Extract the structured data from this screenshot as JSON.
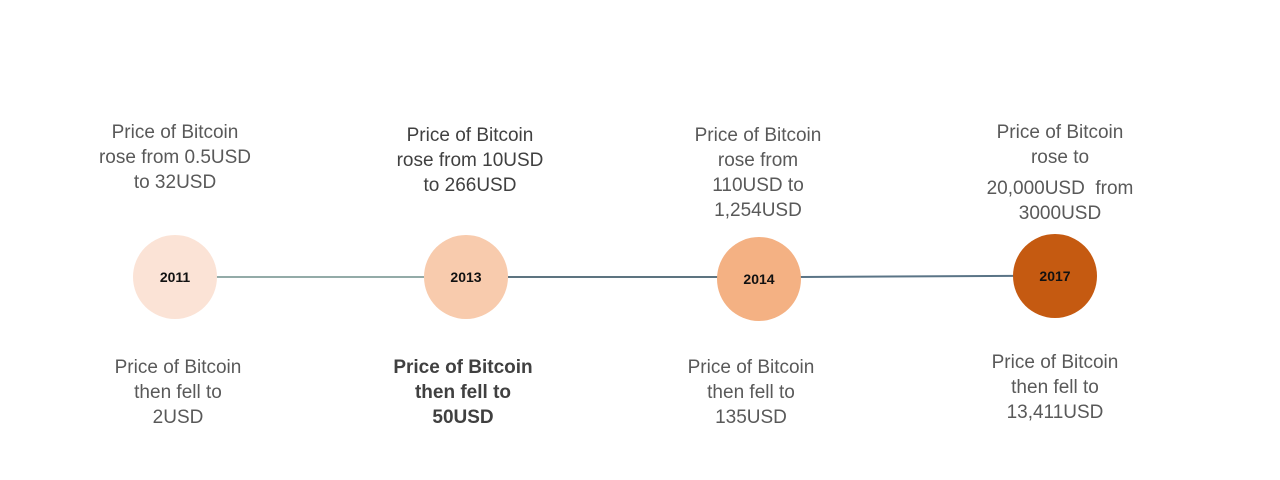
{
  "colors": {
    "line_1": "#93aba8",
    "line_2": "#5d7480",
    "line_3": "#5a7486",
    "circle_2011": "#fbe3d6",
    "circle_2013": "#f8cbad",
    "circle_2014": "#f4b183",
    "circle_2017": "#c55a11"
  },
  "milestones": [
    {
      "year": "2011",
      "top": [
        "Price of Bitcoin",
        "rose from 0.5USD",
        "to 32USD"
      ],
      "bottom": [
        "Price of Bitcoin",
        "then fell to",
        "2USD"
      ]
    },
    {
      "year": "2013",
      "top": [
        "Price of Bitcoin",
        "rose from 10USD",
        "to 266USD"
      ],
      "bottom": [
        "Price of Bitcoin",
        "then fell to",
        "50USD"
      ]
    },
    {
      "year": "2014",
      "top": [
        "Price of Bitcoin",
        "rose from",
        "110USD to",
        "1,254USD"
      ],
      "bottom": [
        "Price of Bitcoin",
        "then fell to",
        "135USD"
      ]
    },
    {
      "year": "2017",
      "top": [
        "Price of Bitcoin",
        "rose to",
        "20,000USD  from",
        "3000USD"
      ],
      "bottom": [
        "Price of Bitcoin",
        "then fell to",
        "13,411USD"
      ]
    }
  ]
}
